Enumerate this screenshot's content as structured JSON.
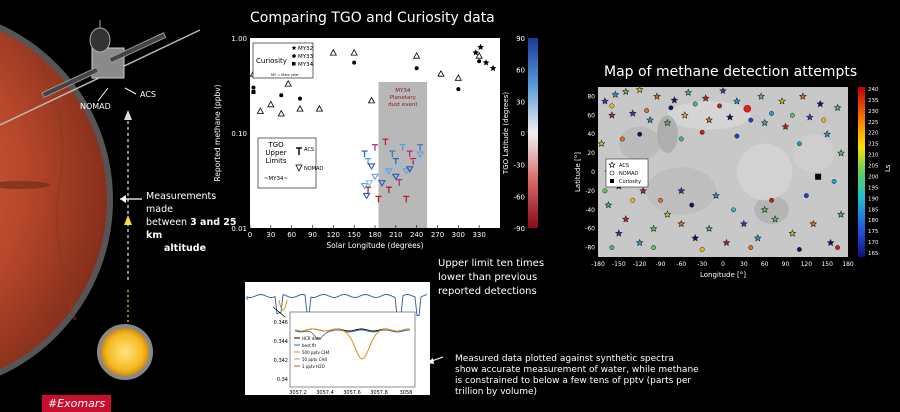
{
  "left": {
    "labels": {
      "nomad": "NOMAD",
      "acs": "ACS"
    },
    "caption_line1": "Measurements made",
    "caption_line2_prefix": "between ",
    "caption_line2_bold": "3 and 25 km",
    "caption_line3": "altitude",
    "hashtag": "#Exomars"
  },
  "center": {
    "title": "Comparing TGO and Curiosity data",
    "annotation_upper": [
      "Upper limit ten times",
      "lower than previous",
      "reported detections"
    ],
    "annotation_lower": [
      "Measured data plotted against synthetic spectra",
      "show accurate measurement of water, while methane",
      "is constrained to below a few tens of pptv (parts per",
      "trillion by volume)"
    ]
  },
  "right": {
    "title": "Map of methane detection attempts"
  },
  "chart_data": [
    {
      "type": "scatter",
      "title": "",
      "xlabel": "Solar Longitude (degrees)",
      "ylabel": "Reported methane (ppbv)",
      "y2label": "TGO Latitude (degrees)",
      "xlim": [
        0,
        360
      ],
      "ylim": [
        0.01,
        1.0
      ],
      "yscale": "log",
      "xticks": [
        0,
        30,
        60,
        90,
        120,
        150,
        180,
        210,
        240,
        270,
        300,
        330
      ],
      "yticks": [
        {
          "v": 0.01,
          "label": "0.01"
        },
        {
          "v": 0.1,
          "label": "0.10"
        },
        {
          "v": 1.0,
          "label": "1.00"
        }
      ],
      "y2ticks": [
        90,
        60,
        30,
        0,
        -30,
        -60,
        -90
      ],
      "legend_curiosity": {
        "title": "Curiosity",
        "items": [
          "MY32",
          "MY33",
          "MY34"
        ],
        "note": "MY = Mars year"
      },
      "legend_tgo": {
        "title": "TGO\nUpper\nLimits",
        "subtitle": "~MY34~",
        "items": [
          "ACS",
          "NOMAD"
        ]
      },
      "dust_event": {
        "label": [
          "MY34",
          "Planetary",
          "dust event"
        ],
        "x_range": [
          185,
          255
        ]
      },
      "series": [
        {
          "name": "MY32",
          "marker": "star",
          "points": [
            [
              325,
              0.7
            ],
            [
              332,
              0.8
            ],
            [
              340,
              0.55
            ],
            [
              350,
              0.48
            ]
          ]
        },
        {
          "name": "MY33",
          "marker": "circle",
          "points": [
            [
              5,
              0.3
            ],
            [
              45,
              0.25
            ],
            [
              72,
              0.23
            ],
            [
              150,
              0.55
            ],
            [
              240,
              0.48
            ],
            [
              300,
              0.29
            ],
            [
              330,
              0.57
            ]
          ]
        },
        {
          "name": "MY34",
          "marker": "square",
          "points": [
            [
              5,
              0.27
            ]
          ]
        },
        {
          "name": "",
          "marker": "triangle",
          "points": [
            [
              5,
              0.42
            ],
            [
              30,
              0.2
            ],
            [
              55,
              0.33
            ],
            [
              72,
              0.18
            ],
            [
              100,
              0.18
            ],
            [
              120,
              0.7
            ],
            [
              150,
              0.7
            ],
            [
              175,
              0.22
            ],
            [
              240,
              0.65
            ],
            [
              275,
              0.42
            ],
            [
              300,
              0.38
            ],
            [
              330,
              0.65
            ],
            [
              15,
              0.17
            ],
            [
              45,
              0.16
            ]
          ]
        }
      ],
      "tgo_acs": [
        [
          165,
          0.06
        ],
        [
          170,
          0.05
        ],
        [
          180,
          0.07
        ],
        [
          195,
          0.08
        ],
        [
          205,
          0.06
        ],
        [
          210,
          0.05
        ],
        [
          220,
          0.07
        ],
        [
          230,
          0.06
        ],
        [
          235,
          0.05
        ],
        [
          245,
          0.07
        ],
        [
          170,
          0.025
        ],
        [
          200,
          0.025
        ],
        [
          215,
          0.03
        ],
        [
          225,
          0.02
        ],
        [
          185,
          0.02
        ]
      ],
      "tgo_nomad": [
        [
          165,
          0.028
        ],
        [
          168,
          0.022
        ],
        [
          172,
          0.03
        ],
        [
          180,
          0.035
        ],
        [
          190,
          0.03
        ],
        [
          195,
          0.04
        ],
        [
          200,
          0.04
        ],
        [
          210,
          0.035
        ],
        [
          215,
          0.045
        ],
        [
          225,
          0.04
        ],
        [
          230,
          0.042
        ],
        [
          240,
          0.05
        ],
        [
          245,
          0.06
        ],
        [
          175,
          0.045
        ]
      ]
    },
    {
      "type": "line",
      "title": "",
      "xlabel": "",
      "ylabel": "",
      "xticks": [
        "3057.2",
        "3057.4",
        "3057.6",
        "3057.8",
        "3058"
      ],
      "yticks": [
        "0.346",
        "0.344",
        "0.342",
        "0.34"
      ],
      "legend": [
        "HCR data",
        "best fit",
        "500 pptv CH4",
        "50 pptv CH4",
        "1 pptv H2O"
      ]
    },
    {
      "type": "scatter",
      "title": "Map of methane detection attempts",
      "xlabel": "Longitude [°]",
      "ylabel": "Latitude [°]",
      "colorbar_label": "Ls",
      "xlim": [
        -180,
        180
      ],
      "ylim": [
        -90,
        90
      ],
      "xticks": [
        -180,
        -150,
        -120,
        -90,
        -60,
        -30,
        0,
        30,
        60,
        90,
        120,
        150,
        180
      ],
      "yticks": [
        80,
        60,
        40,
        20,
        0,
        -20,
        -40,
        -60,
        -80
      ],
      "cbar_ticks": [
        240,
        235,
        230,
        225,
        220,
        215,
        210,
        205,
        200,
        195,
        190,
        185,
        180,
        175,
        170,
        165
      ],
      "legend": [
        "ACS",
        "NOMAD",
        "Curiosity"
      ],
      "curiosity": [
        [
          137,
          -5
        ]
      ],
      "red_circle": [
        [
          35,
          67
        ]
      ],
      "acs": [
        [
          -170,
          75
        ],
        [
          -155,
          82
        ],
        [
          -140,
          85
        ],
        [
          -120,
          87
        ],
        [
          -95,
          80
        ],
        [
          -70,
          76
        ],
        [
          -50,
          84
        ],
        [
          -25,
          78
        ],
        [
          0,
          86
        ],
        [
          20,
          75
        ],
        [
          55,
          80
        ],
        [
          85,
          75
        ],
        [
          115,
          80
        ],
        [
          140,
          72
        ],
        [
          165,
          68
        ],
        [
          -160,
          60
        ],
        [
          -130,
          62
        ],
        [
          -105,
          55
        ],
        [
          -80,
          52
        ],
        [
          -55,
          60
        ],
        [
          -20,
          55
        ],
        [
          10,
          58
        ],
        [
          60,
          52
        ],
        [
          90,
          48
        ],
        [
          125,
          58
        ],
        [
          150,
          40
        ],
        [
          170,
          20
        ],
        [
          -175,
          30
        ],
        [
          -165,
          0
        ],
        [
          -150,
          -15
        ],
        [
          -165,
          -35
        ],
        [
          -140,
          -50
        ],
        [
          -150,
          -65
        ],
        [
          -120,
          -75
        ],
        [
          -100,
          -60
        ],
        [
          -80,
          -45
        ],
        [
          -60,
          -55
        ],
        [
          -40,
          -70
        ],
        [
          -20,
          -60
        ],
        [
          5,
          -75
        ],
        [
          30,
          -55
        ],
        [
          50,
          -70
        ],
        [
          75,
          -50
        ],
        [
          100,
          -65
        ],
        [
          130,
          -55
        ],
        [
          155,
          -75
        ],
        [
          170,
          -45
        ],
        [
          -115,
          -20
        ],
        [
          -60,
          -20
        ],
        [
          -10,
          -25
        ],
        [
          60,
          -40
        ]
      ],
      "nomad": [
        [
          -160,
          70
        ],
        [
          -110,
          65
        ],
        [
          -75,
          68
        ],
        [
          -40,
          72
        ],
        [
          -5,
          70
        ],
        [
          40,
          55
        ],
        [
          70,
          62
        ],
        [
          100,
          60
        ],
        [
          145,
          55
        ],
        [
          -145,
          35
        ],
        [
          -120,
          40
        ],
        [
          -60,
          35
        ],
        [
          -30,
          42
        ],
        [
          20,
          38
        ],
        [
          110,
          30
        ],
        [
          -170,
          -20
        ],
        [
          -130,
          -30
        ],
        [
          -90,
          -30
        ],
        [
          -45,
          -35
        ],
        [
          15,
          -40
        ],
        [
          70,
          -30
        ],
        [
          120,
          -25
        ],
        [
          160,
          -10
        ],
        [
          -100,
          -80
        ],
        [
          -30,
          -82
        ],
        [
          40,
          -80
        ],
        [
          110,
          -82
        ],
        [
          -160,
          -80
        ],
        [
          165,
          -80
        ]
      ]
    }
  ]
}
